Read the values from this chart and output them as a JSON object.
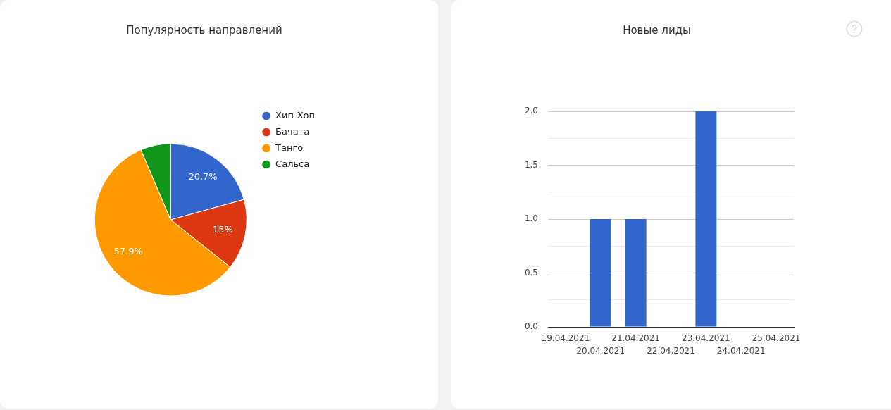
{
  "chart_data": [
    {
      "type": "pie",
      "title": "Популярность направлений",
      "categories": [
        "Хип-Хоп",
        "Бачата",
        "Танго",
        "Сальса"
      ],
      "values": [
        20.7,
        15,
        57.9,
        6.4
      ],
      "colors": [
        "#3366cc",
        "#dc3912",
        "#ff9900",
        "#109618"
      ],
      "value_labels": [
        "20.7%",
        "15%",
        "57.9%",
        null
      ],
      "legend": "right"
    },
    {
      "type": "bar",
      "title": "Новые лиды",
      "categories": [
        "19.04.2021",
        "20.04.2021",
        "21.04.2021",
        "22.04.2021",
        "23.04.2021",
        "24.04.2021",
        "25.04.2021"
      ],
      "values": [
        0,
        1,
        1,
        0,
        2,
        0,
        0
      ],
      "color": "#3366cc",
      "ylim": [
        0,
        2
      ],
      "yticks": [
        {
          "value": 0,
          "label": "0.0"
        },
        {
          "value": 0.25,
          "label": null
        },
        0.5,
        {
          "value": 0.75,
          "label": null
        },
        {
          "value": 1,
          "label": "1.0"
        },
        {
          "value": 1.25,
          "label": null
        },
        1.5,
        {
          "value": 1.75,
          "label": null
        },
        {
          "value": 2,
          "label": "2.0"
        }
      ],
      "grid": "y"
    }
  ]
}
